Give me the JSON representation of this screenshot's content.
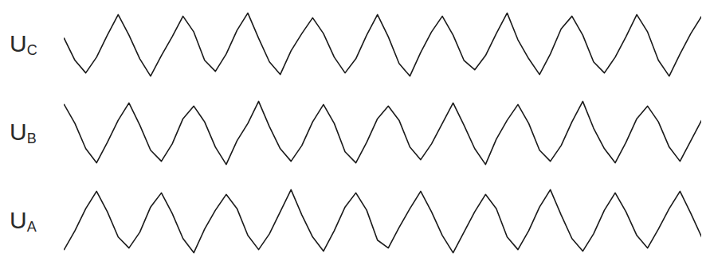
{
  "chart_data": {
    "type": "line",
    "tick_labels": false,
    "xlim": [
      0,
      59
    ],
    "ylim": [
      -1.2,
      1.2
    ],
    "x": [
      0,
      1,
      2,
      3,
      4,
      5,
      6,
      7,
      8,
      9,
      10,
      11,
      12,
      13,
      14,
      15,
      16,
      17,
      18,
      19,
      20,
      21,
      22,
      23,
      24,
      25,
      26,
      27,
      28,
      29,
      30,
      31,
      32,
      33,
      34,
      35,
      36,
      37,
      38,
      39,
      40,
      41,
      42,
      43,
      44,
      45,
      46,
      47,
      48,
      49,
      50,
      51,
      52,
      53,
      54,
      55,
      56,
      57,
      58,
      59
    ],
    "series": [
      {
        "name": "UC",
        "color": "#1a1a1a",
        "values": [
          0.2,
          -0.5,
          -0.9,
          -0.4,
          0.3,
          0.95,
          0.3,
          -0.45,
          -1.0,
          -0.35,
          0.25,
          0.9,
          0.4,
          -0.5,
          -0.85,
          -0.3,
          0.45,
          1.0,
          0.2,
          -0.55,
          -0.95,
          -0.2,
          0.35,
          0.85,
          0.35,
          -0.4,
          -0.9,
          -0.45,
          0.3,
          0.95,
          0.25,
          -0.6,
          -1.0,
          -0.25,
          0.4,
          0.9,
          0.3,
          -0.5,
          -0.8,
          -0.35,
          0.35,
          1.0,
          0.15,
          -0.45,
          -0.95,
          -0.3,
          0.5,
          0.9,
          0.3,
          -0.55,
          -0.9,
          -0.4,
          0.25,
          0.95,
          0.4,
          -0.5,
          -1.0,
          -0.3,
          0.35,
          0.9
        ]
      },
      {
        "name": "UB",
        "color": "#1a1a1a",
        "values": [
          0.9,
          0.3,
          -0.5,
          -0.95,
          -0.3,
          0.4,
          0.95,
          0.25,
          -0.55,
          -0.9,
          -0.35,
          0.45,
          0.85,
          0.35,
          -0.45,
          -1.0,
          -0.25,
          0.3,
          1.0,
          0.2,
          -0.5,
          -0.9,
          -0.4,
          0.35,
          0.9,
          0.3,
          -0.6,
          -0.95,
          -0.3,
          0.45,
          0.85,
          0.4,
          -0.45,
          -0.85,
          -0.35,
          0.3,
          0.95,
          0.25,
          -0.5,
          -1.0,
          -0.2,
          0.4,
          0.9,
          0.3,
          -0.55,
          -0.9,
          -0.4,
          0.35,
          1.0,
          0.15,
          -0.5,
          -0.95,
          -0.3,
          0.45,
          0.85,
          0.35,
          -0.45,
          -0.9,
          -0.25,
          0.4
        ]
      },
      {
        "name": "UA",
        "color": "#1a1a1a",
        "values": [
          -0.9,
          -0.3,
          0.4,
          0.95,
          0.3,
          -0.5,
          -0.85,
          -0.35,
          0.45,
          0.9,
          0.25,
          -0.55,
          -1.0,
          -0.25,
          0.35,
          0.85,
          0.4,
          -0.45,
          -0.9,
          -0.4,
          0.3,
          1.0,
          0.2,
          -0.5,
          -0.95,
          -0.3,
          0.45,
          0.9,
          0.35,
          -0.6,
          -0.85,
          -0.2,
          0.4,
          0.95,
          0.3,
          -0.45,
          -1.0,
          -0.35,
          0.3,
          0.85,
          0.4,
          -0.5,
          -0.9,
          -0.3,
          0.45,
          1.0,
          0.2,
          -0.55,
          -0.95,
          -0.4,
          0.35,
          0.9,
          0.3,
          -0.45,
          -0.85,
          -0.25,
          0.4,
          0.95,
          0.25,
          -0.5
        ]
      }
    ]
  }
}
